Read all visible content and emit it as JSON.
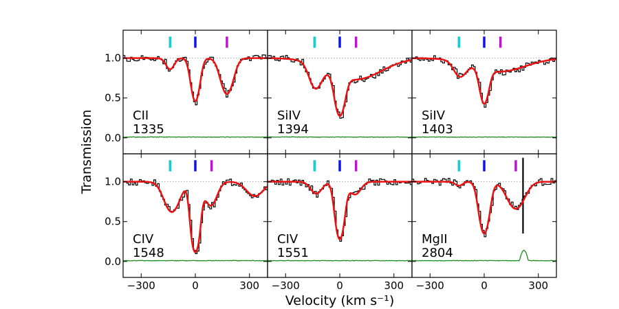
{
  "chart_data": {
    "type": "line",
    "xlabel": "Velocity (km s⁻¹)",
    "ylabel": "Transmission",
    "xlim": [
      -400,
      400
    ],
    "ylim": [
      -0.2,
      1.35
    ],
    "x_ticks": [
      -300,
      0,
      300
    ],
    "y_ticks": [
      0.0,
      0.5,
      1.0
    ],
    "x_tick_labels": [
      "−300",
      "0",
      "300"
    ],
    "y_tick_labels": [
      "0.0",
      "0.5",
      "1.0"
    ],
    "component_markers": [
      {
        "velocity": -140,
        "color": "#1ecbcb"
      },
      {
        "velocity": 0,
        "color": "#0a14e6"
      },
      {
        "velocity": 170,
        "color": "#b418c8"
      }
    ],
    "colors": {
      "data": "#000000",
      "model": "#ee1111",
      "error": "#1a8a1a",
      "continuum": "#aaaaaa"
    },
    "panels": [
      {
        "ion": "CII",
        "wavelength": "1335",
        "marker_velocities": [
          -140,
          0,
          175
        ],
        "components": [
          {
            "v": -140,
            "depth": 0.14,
            "sigma": 22
          },
          {
            "v": 0,
            "depth": 0.54,
            "sigma": 22
          },
          {
            "v": 175,
            "depth": 0.45,
            "sigma": 32
          }
        ],
        "error_level": 0.01,
        "features": []
      },
      {
        "ion": "SiIV",
        "wavelength": "1394",
        "marker_velocities": [
          -140,
          0,
          90
        ],
        "components": [
          {
            "v": -135,
            "depth": 0.32,
            "sigma": 32
          },
          {
            "v": 0,
            "depth": 0.64,
            "sigma": 24
          },
          {
            "v": 80,
            "depth": 0.27,
            "sigma": 140
          }
        ],
        "error_level": 0.01,
        "features": []
      },
      {
        "ion": "SiIV",
        "wavelength": "1403",
        "marker_velocities": [
          -140,
          0,
          90
        ],
        "components": [
          {
            "v": -135,
            "depth": 0.19,
            "sigma": 32
          },
          {
            "v": 0,
            "depth": 0.5,
            "sigma": 22
          },
          {
            "v": 80,
            "depth": 0.17,
            "sigma": 140
          }
        ],
        "error_level": 0.01,
        "features": []
      },
      {
        "ion": "CIV",
        "wavelength": "1548",
        "marker_velocities": [
          -140,
          0,
          90
        ],
        "components": [
          {
            "v": -130,
            "depth": 0.38,
            "sigma": 40
          },
          {
            "v": 0,
            "depth": 0.88,
            "sigma": 20
          },
          {
            "v": 85,
            "depth": 0.3,
            "sigma": 32
          },
          {
            "v": 330,
            "depth": 0.18,
            "sigma": 45
          }
        ],
        "error_level": 0.01,
        "features": []
      },
      {
        "ion": "CIV",
        "wavelength": "1551",
        "marker_velocities": [
          -140,
          0,
          90
        ],
        "components": [
          {
            "v": -130,
            "depth": 0.15,
            "sigma": 30
          },
          {
            "v": 0,
            "depth": 0.72,
            "sigma": 22
          },
          {
            "v": 85,
            "depth": 0.16,
            "sigma": 30
          }
        ],
        "error_level": 0.01,
        "features": []
      },
      {
        "ion": "MgII",
        "wavelength": "2804",
        "marker_velocities": [
          -140,
          0,
          175
        ],
        "components": [
          {
            "v": -140,
            "depth": 0.05,
            "sigma": 20
          },
          {
            "v": 0,
            "depth": 0.65,
            "sigma": 25
          },
          {
            "v": 175,
            "depth": 0.34,
            "sigma": 45
          }
        ],
        "error_level": 0.01,
        "features": [
          {
            "type": "error_bump",
            "v_from": 195,
            "v_to": 245,
            "height": 0.13
          },
          {
            "type": "spike",
            "v": 215,
            "y_from": 0.35,
            "y_to": 1.3
          }
        ]
      }
    ]
  }
}
